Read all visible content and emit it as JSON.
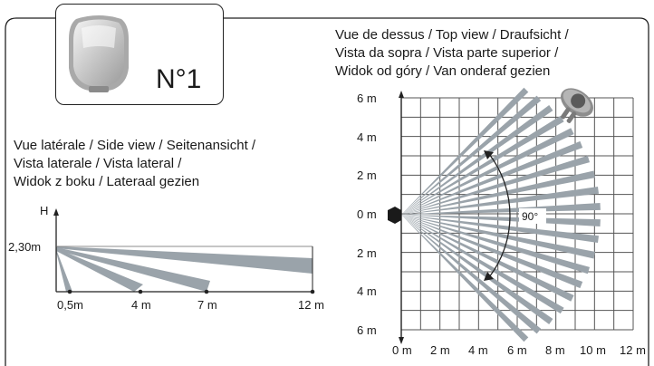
{
  "product": {
    "number_label": "N°1",
    "device_icon": "motion-detector-icon",
    "person_icon": "person-top-view-icon"
  },
  "top_view": {
    "title_lines": [
      "Vue de dessus / Top view / Draufsicht /",
      "Vista da sopra / Vista parte superior /",
      "Widok od góry / Van onderaf gezien"
    ],
    "y_ticks": [
      "6 m",
      "4 m",
      "2 m",
      "0 m",
      "2 m",
      "4 m",
      "6 m"
    ],
    "x_ticks": [
      "0 m",
      "2 m",
      "4 m",
      "6 m",
      "8 m",
      "10 m",
      "12 m"
    ],
    "angle_label": "90°"
  },
  "side_view": {
    "title_lines": [
      "Vue latérale / Side view / Seitenansicht /",
      "Vista laterale / Vista lateral /",
      "Widok z boku / Lateraal gezien"
    ],
    "axis_label": "H",
    "height_label": "2,30m",
    "x_ticks": [
      "0,5m",
      "4 m",
      "7 m",
      "12 m"
    ]
  },
  "colors": {
    "beam": "#9aa3aa",
    "grid": "#555555",
    "line": "#222222"
  }
}
